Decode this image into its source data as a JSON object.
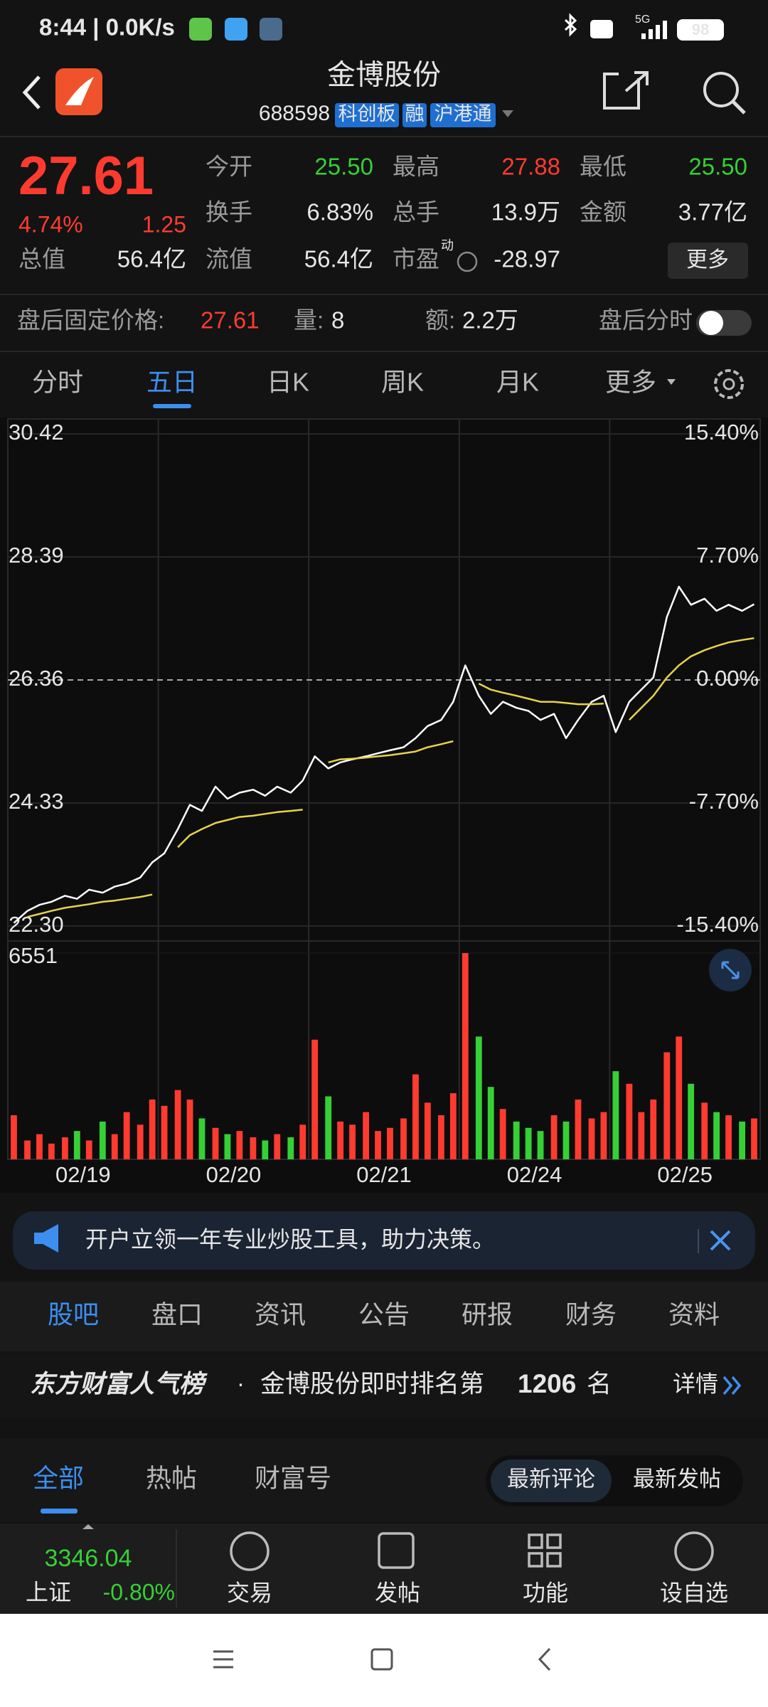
{
  "status": {
    "time": "8:44 | 0.0K/s",
    "network": "5G",
    "battery": "98"
  },
  "header": {
    "title": "金博股份",
    "code": "688598",
    "tags": [
      "科创板",
      "融",
      "沪港通"
    ]
  },
  "quote": {
    "price": "27.61",
    "change_pct": "4.74%",
    "change": "1.25",
    "stats": [
      {
        "label": "今开",
        "value": "25.50"
      },
      {
        "label": "最高",
        "value": "27.88"
      },
      {
        "label": "最低",
        "value": "25.50"
      },
      {
        "label": "换手",
        "value": "6.83%"
      },
      {
        "label": "总手",
        "value": "13.9万"
      },
      {
        "label": "金额",
        "value": "3.77亿"
      },
      {
        "label": "总值",
        "value": "56.4亿"
      },
      {
        "label": "流值",
        "value": "56.4亿"
      },
      {
        "label": "市盈",
        "value": "-28.97"
      }
    ],
    "pe_mark": "动",
    "more_button": "更多"
  },
  "after_hours": {
    "label": "盘后固定价格:",
    "price": "27.61",
    "volume_label": "量:",
    "volume": "8",
    "amount_label": "额:",
    "amount": "2.2万",
    "toggle_label": "盘后分时"
  },
  "period_tabs": [
    "分时",
    "五日",
    "日K",
    "周K",
    "月K",
    "更多"
  ],
  "chart_data": {
    "type": "line",
    "x": [
      0.04,
      0.13,
      0.21,
      0.29,
      0.38,
      0.46,
      0.54,
      0.63,
      0.71,
      0.79,
      0.88,
      0.96,
      1.04,
      1.13,
      1.21,
      1.29,
      1.38,
      1.46,
      1.54,
      1.63,
      1.71,
      1.79,
      1.88,
      1.96,
      2.04,
      2.13,
      2.21,
      2.29,
      2.38,
      2.46,
      2.54,
      2.63,
      2.71,
      2.79,
      2.88,
      2.96,
      3.04,
      3.13,
      3.21,
      3.29,
      3.38,
      3.46,
      3.54,
      3.63,
      3.71,
      3.79,
      3.88,
      3.96,
      4.04,
      4.13,
      4.21,
      4.29,
      4.38,
      4.46,
      4.54,
      4.63,
      4.71,
      4.79,
      4.88,
      4.96
    ],
    "xlim": [
      0,
      5
    ],
    "xticks": [
      {
        "value": 0.5,
        "label": "02/19"
      },
      {
        "value": 1.5,
        "label": "02/20"
      },
      {
        "value": 2.5,
        "label": "02/21"
      },
      {
        "value": 3.5,
        "label": "02/24"
      },
      {
        "value": 4.5,
        "label": "02/25"
      }
    ],
    "series": [
      {
        "color": "#ffffff",
        "values": [
          22.35,
          22.55,
          22.65,
          22.7,
          22.8,
          22.75,
          22.9,
          22.85,
          22.95,
          23.0,
          23.1,
          23.35,
          23.5,
          23.9,
          24.3,
          24.2,
          24.6,
          24.4,
          24.5,
          24.55,
          24.45,
          24.6,
          24.5,
          24.7,
          25.1,
          24.9,
          25.0,
          25.05,
          25.1,
          25.15,
          25.2,
          25.25,
          25.4,
          25.6,
          25.7,
          26.0,
          26.6,
          26.1,
          25.8,
          26.0,
          25.9,
          25.85,
          25.7,
          25.8,
          25.4,
          25.7,
          26.0,
          26.1,
          25.5,
          26.0,
          26.2,
          26.4,
          27.4,
          27.9,
          27.6,
          27.7,
          27.5,
          27.6,
          27.5,
          27.61
        ]
      },
      {
        "color": "#e6d34a",
        "values": [
          null,
          22.45,
          22.5,
          22.55,
          22.6,
          22.63,
          22.66,
          22.7,
          22.72,
          22.75,
          22.78,
          22.82,
          null,
          23.6,
          23.8,
          23.9,
          24.0,
          24.05,
          24.1,
          24.12,
          24.15,
          24.18,
          24.2,
          24.22,
          null,
          25.0,
          25.05,
          25.06,
          25.08,
          25.1,
          25.12,
          25.15,
          25.18,
          25.25,
          25.3,
          25.35,
          null,
          26.3,
          26.2,
          26.15,
          26.1,
          26.05,
          26.0,
          26.0,
          25.98,
          25.96,
          25.96,
          25.97,
          null,
          25.7,
          25.9,
          26.1,
          26.4,
          26.6,
          26.75,
          26.85,
          26.92,
          26.98,
          27.02,
          27.05
        ]
      }
    ],
    "ylim": [
      22.3,
      30.42
    ],
    "yticks": [
      30.42,
      28.39,
      26.36,
      24.33,
      {
        "value": 22.3,
        "label": "22.30"
      }
    ],
    "y2lim": [
      -15.4,
      15.4
    ],
    "y2ticks": [
      {
        "value": 15.4,
        "label": "15.40%"
      },
      {
        "value": 7.7,
        "label": "7.70%"
      },
      {
        "value": 0,
        "label": "0.00%"
      },
      {
        "value": -7.7,
        "label": "-7.70%"
      },
      {
        "value": -15.4,
        "label": "-15.40%"
      }
    ],
    "up_color": "#ff3b30",
    "down_color": "#35d035",
    "flat_color": "#bbbbbb",
    "volume": {
      "values": [
        1400,
        600,
        800,
        500,
        700,
        900,
        600,
        1200,
        800,
        1500,
        1100,
        1900,
        1700,
        2200,
        1900,
        1300,
        1000,
        800,
        900,
        700,
        600,
        800,
        700,
        1100,
        3800,
        2000,
        1200,
        1100,
        1500,
        900,
        1000,
        1300,
        2700,
        1800,
        1400,
        2100,
        6551,
        3900,
        2300,
        1600,
        1200,
        1000,
        900,
        1400,
        1200,
        1900,
        1300,
        1500,
        2800,
        2400,
        1500,
        1900,
        3400,
        3900,
        2400,
        1800,
        1500,
        1400,
        1200,
        1300
      ],
      "ylim": [
        0,
        6551
      ],
      "yticks": [
        6551
      ]
    }
  },
  "banner": {
    "text": "开户立领一年专业炒股工具，助力决策。"
  },
  "section_tabs": [
    "股吧",
    "盘口",
    "资讯",
    "公告",
    "研报",
    "财务",
    "资料"
  ],
  "ranking": {
    "brand": "东方财富人气榜",
    "dot": "·",
    "text": "金博股份即时排名第",
    "rank": "1206",
    "suffix": "名",
    "details": "详情"
  },
  "post_tabs": [
    "全部",
    "热帖",
    "财富号"
  ],
  "sort_options": [
    "最新评论",
    "最新发帖"
  ],
  "bottom_nav": {
    "index_value": "3346.04",
    "index_name": "上证",
    "index_change": "-0.80%",
    "items": [
      "交易",
      "发帖",
      "功能",
      "设自选"
    ]
  }
}
